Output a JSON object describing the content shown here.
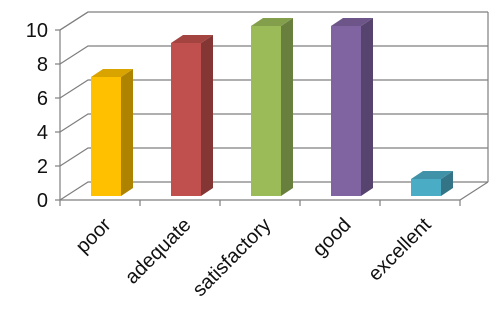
{
  "chart_data": {
    "type": "bar",
    "style": "3d-column",
    "categories": [
      "poor",
      "adequate",
      "satisfactory",
      "good",
      "excellent"
    ],
    "values": [
      7,
      9,
      10,
      10,
      1
    ],
    "colors": [
      "#FFC000",
      "#C0504D",
      "#9BBB59",
      "#8064A2",
      "#4BACC6"
    ],
    "yticks": [
      "0",
      "2",
      "4",
      "6",
      "8",
      "10"
    ],
    "ylim": [
      0,
      10
    ],
    "grid": true,
    "legend": "none"
  }
}
